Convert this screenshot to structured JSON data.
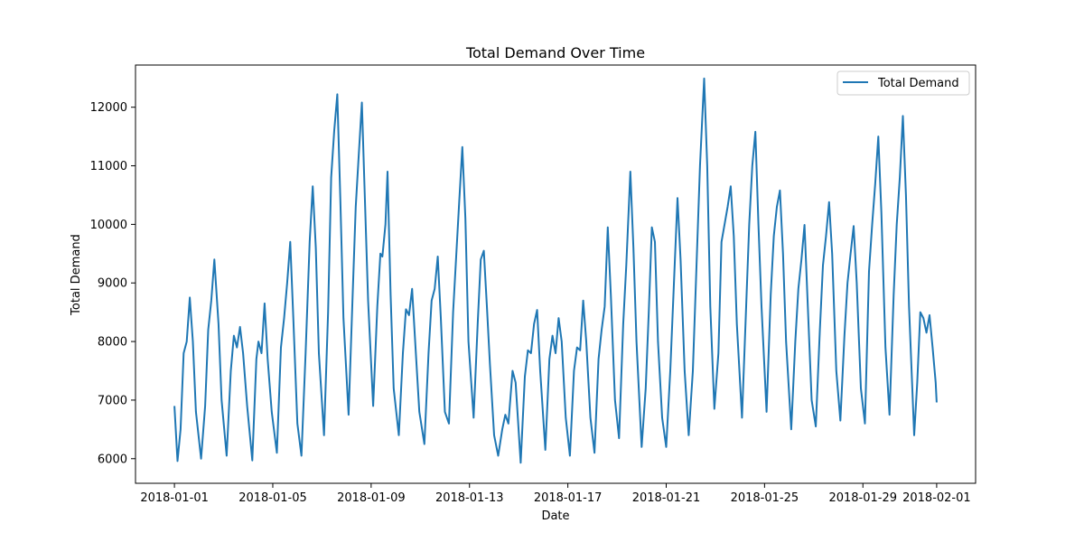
{
  "chart_data": {
    "type": "line",
    "title": "Total Demand Over Time",
    "xlabel": "Date",
    "ylabel": "Total Demand",
    "x_start": "2018-01-01",
    "x_end": "2018-02-01",
    "xlim": [
      "2017-12-30T10:00",
      "2018-02-02T14:00"
    ],
    "ylim": [
      5580,
      12720
    ],
    "x_ticks": [
      "2018-01-01",
      "2018-01-05",
      "2018-01-09",
      "2018-01-13",
      "2018-01-17",
      "2018-01-21",
      "2018-01-25",
      "2018-01-29",
      "2018-02-01"
    ],
    "y_ticks": [
      6000,
      7000,
      8000,
      9000,
      10000,
      11000,
      12000
    ],
    "grid": false,
    "legend": "top-right",
    "colors": {
      "series": "#1f77b4"
    },
    "series": [
      {
        "name": "Total Demand",
        "points": [
          [
            "2018-01-01T00:00",
            6900
          ],
          [
            "2018-01-01T03:00",
            5960
          ],
          [
            "2018-01-01T06:00",
            6500
          ],
          [
            "2018-01-01T09:00",
            7800
          ],
          [
            "2018-01-01T12:00",
            8000
          ],
          [
            "2018-01-01T15:00",
            8750
          ],
          [
            "2018-01-01T18:00",
            8000
          ],
          [
            "2018-01-01T21:00",
            6800
          ],
          [
            "2018-01-02T02:00",
            6000
          ],
          [
            "2018-01-02T06:00",
            6900
          ],
          [
            "2018-01-02T09:00",
            8200
          ],
          [
            "2018-01-02T12:00",
            8700
          ],
          [
            "2018-01-02T15:00",
            9400
          ],
          [
            "2018-01-02T19:00",
            8300
          ],
          [
            "2018-01-02T22:00",
            7000
          ],
          [
            "2018-01-03T03:00",
            6050
          ],
          [
            "2018-01-03T07:00",
            7500
          ],
          [
            "2018-01-03T10:00",
            8100
          ],
          [
            "2018-01-03T13:00",
            7900
          ],
          [
            "2018-01-03T16:00",
            8250
          ],
          [
            "2018-01-03T19:00",
            7800
          ],
          [
            "2018-01-03T23:00",
            6900
          ],
          [
            "2018-01-04T04:00",
            5970
          ],
          [
            "2018-01-04T08:00",
            7700
          ],
          [
            "2018-01-04T10:00",
            8000
          ],
          [
            "2018-01-04T13:00",
            7800
          ],
          [
            "2018-01-04T16:00",
            8650
          ],
          [
            "2018-01-04T19:00",
            7700
          ],
          [
            "2018-01-04T23:00",
            6800
          ],
          [
            "2018-01-05T04:00",
            6100
          ],
          [
            "2018-01-05T08:00",
            7900
          ],
          [
            "2018-01-05T11:00",
            8400
          ],
          [
            "2018-01-05T14:00",
            9000
          ],
          [
            "2018-01-05T17:00",
            9700
          ],
          [
            "2018-01-05T20:00",
            8400
          ],
          [
            "2018-01-06T00:00",
            6600
          ],
          [
            "2018-01-06T04:00",
            6050
          ],
          [
            "2018-01-06T08:00",
            7800
          ],
          [
            "2018-01-06T12:00",
            9700
          ],
          [
            "2018-01-06T15:00",
            10650
          ],
          [
            "2018-01-06T18:00",
            9600
          ],
          [
            "2018-01-06T21:00",
            7800
          ],
          [
            "2018-01-07T02:00",
            6400
          ],
          [
            "2018-01-07T06:00",
            8500
          ],
          [
            "2018-01-07T09:00",
            10800
          ],
          [
            "2018-01-07T12:00",
            11600
          ],
          [
            "2018-01-07T15:00",
            12220
          ],
          [
            "2018-01-07T18:00",
            10400
          ],
          [
            "2018-01-07T21:00",
            8400
          ],
          [
            "2018-01-08T02:00",
            6750
          ],
          [
            "2018-01-08T06:00",
            8800
          ],
          [
            "2018-01-08T09:00",
            10300
          ],
          [
            "2018-01-08T12:00",
            11200
          ],
          [
            "2018-01-08T15:00",
            12080
          ],
          [
            "2018-01-08T18:00",
            10400
          ],
          [
            "2018-01-08T21:00",
            8700
          ],
          [
            "2018-01-09T02:00",
            6900
          ],
          [
            "2018-01-09T06:00",
            8600
          ],
          [
            "2018-01-09T09:00",
            9500
          ],
          [
            "2018-01-09T11:00",
            9450
          ],
          [
            "2018-01-09T14:00",
            10000
          ],
          [
            "2018-01-09T16:00",
            10900
          ],
          [
            "2018-01-09T19:00",
            8800
          ],
          [
            "2018-01-09T22:00",
            7200
          ],
          [
            "2018-01-10T03:00",
            6400
          ],
          [
            "2018-01-10T07:00",
            7800
          ],
          [
            "2018-01-10T10:00",
            8550
          ],
          [
            "2018-01-10T13:00",
            8450
          ],
          [
            "2018-01-10T16:00",
            8900
          ],
          [
            "2018-01-10T19:00",
            8000
          ],
          [
            "2018-01-10T23:00",
            6800
          ],
          [
            "2018-01-11T04:00",
            6250
          ],
          [
            "2018-01-11T08:00",
            7800
          ],
          [
            "2018-01-11T11:00",
            8700
          ],
          [
            "2018-01-11T14:00",
            8900
          ],
          [
            "2018-01-11T17:00",
            9450
          ],
          [
            "2018-01-11T20:00",
            8400
          ],
          [
            "2018-01-12T00:00",
            6800
          ],
          [
            "2018-01-12T04:00",
            6600
          ],
          [
            "2018-01-12T08:00",
            8500
          ],
          [
            "2018-01-12T11:00",
            9450
          ],
          [
            "2018-01-12T14:00",
            10400
          ],
          [
            "2018-01-12T17:00",
            11320
          ],
          [
            "2018-01-12T20:00",
            10100
          ],
          [
            "2018-01-12T23:00",
            8000
          ],
          [
            "2018-01-13T04:00",
            6700
          ],
          [
            "2018-01-13T08:00",
            8300
          ],
          [
            "2018-01-13T11:00",
            9400
          ],
          [
            "2018-01-13T14:00",
            9550
          ],
          [
            "2018-01-13T17:00",
            8600
          ],
          [
            "2018-01-13T20:00",
            7600
          ],
          [
            "2018-01-14T00:00",
            6400
          ],
          [
            "2018-01-14T04:00",
            6050
          ],
          [
            "2018-01-14T08:00",
            6500
          ],
          [
            "2018-01-14T11:00",
            6750
          ],
          [
            "2018-01-14T14:00",
            6600
          ],
          [
            "2018-01-14T18:00",
            7500
          ],
          [
            "2018-01-14T21:00",
            7300
          ],
          [
            "2018-01-15T02:00",
            5930
          ],
          [
            "2018-01-15T06:00",
            7400
          ],
          [
            "2018-01-15T09:00",
            7850
          ],
          [
            "2018-01-15T12:00",
            7800
          ],
          [
            "2018-01-15T15:00",
            8300
          ],
          [
            "2018-01-15T18:00",
            8540
          ],
          [
            "2018-01-15T21:00",
            7500
          ],
          [
            "2018-01-16T02:00",
            6150
          ],
          [
            "2018-01-16T06:00",
            7700
          ],
          [
            "2018-01-16T09:00",
            8100
          ],
          [
            "2018-01-16T12:00",
            7800
          ],
          [
            "2018-01-16T15:00",
            8400
          ],
          [
            "2018-01-16T18:00",
            8000
          ],
          [
            "2018-01-16T22:00",
            6700
          ],
          [
            "2018-01-17T02:00",
            6050
          ],
          [
            "2018-01-17T06:00",
            7500
          ],
          [
            "2018-01-17T09:00",
            7900
          ],
          [
            "2018-01-17T12:00",
            7850
          ],
          [
            "2018-01-17T15:00",
            8700
          ],
          [
            "2018-01-17T18:00",
            8000
          ],
          [
            "2018-01-17T22:00",
            6700
          ],
          [
            "2018-01-18T02:00",
            6100
          ],
          [
            "2018-01-18T06:00",
            7700
          ],
          [
            "2018-01-18T09:00",
            8200
          ],
          [
            "2018-01-18T12:00",
            8600
          ],
          [
            "2018-01-18T15:00",
            9950
          ],
          [
            "2018-01-18T18:00",
            8800
          ],
          [
            "2018-01-18T22:00",
            7000
          ],
          [
            "2018-01-19T02:00",
            6350
          ],
          [
            "2018-01-19T06:00",
            8300
          ],
          [
            "2018-01-19T09:00",
            9300
          ],
          [
            "2018-01-19T13:00",
            10900
          ],
          [
            "2018-01-19T16:00",
            9600
          ],
          [
            "2018-01-19T19:00",
            8000
          ],
          [
            "2018-01-20T00:00",
            6200
          ],
          [
            "2018-01-20T04:00",
            7200
          ],
          [
            "2018-01-20T07:00",
            8500
          ],
          [
            "2018-01-20T10:00",
            9950
          ],
          [
            "2018-01-20T13:00",
            9700
          ],
          [
            "2018-01-20T16:00",
            8000
          ],
          [
            "2018-01-20T20:00",
            6700
          ],
          [
            "2018-01-21T00:00",
            6200
          ],
          [
            "2018-01-21T04:00",
            7500
          ],
          [
            "2018-01-21T08:00",
            9200
          ],
          [
            "2018-01-21T11:00",
            10450
          ],
          [
            "2018-01-21T14:00",
            9400
          ],
          [
            "2018-01-21T18:00",
            7500
          ],
          [
            "2018-01-21T22:00",
            6400
          ],
          [
            "2018-01-22T02:00",
            7500
          ],
          [
            "2018-01-22T06:00",
            9500
          ],
          [
            "2018-01-22T09:00",
            11000
          ],
          [
            "2018-01-22T13:00",
            12490
          ],
          [
            "2018-01-22T16:00",
            11000
          ],
          [
            "2018-01-22T19:00",
            8600
          ],
          [
            "2018-01-22T23:00",
            6850
          ],
          [
            "2018-01-23T03:00",
            7800
          ],
          [
            "2018-01-23T06:00",
            9700
          ],
          [
            "2018-01-23T09:00",
            10000
          ],
          [
            "2018-01-23T12:00",
            10300
          ],
          [
            "2018-01-23T15:00",
            10650
          ],
          [
            "2018-01-23T18:00",
            9800
          ],
          [
            "2018-01-23T21:00",
            8300
          ],
          [
            "2018-01-24T02:00",
            6700
          ],
          [
            "2018-01-24T06:00",
            8600
          ],
          [
            "2018-01-24T09:00",
            10000
          ],
          [
            "2018-01-24T12:00",
            11000
          ],
          [
            "2018-01-24T15:00",
            11580
          ],
          [
            "2018-01-24T18:00",
            10000
          ],
          [
            "2018-01-24T21:00",
            8600
          ],
          [
            "2018-01-25T02:00",
            6800
          ],
          [
            "2018-01-25T06:00",
            8800
          ],
          [
            "2018-01-25T09:00",
            9800
          ],
          [
            "2018-01-25T12:00",
            10300
          ],
          [
            "2018-01-25T15:00",
            10580
          ],
          [
            "2018-01-25T18:00",
            9500
          ],
          [
            "2018-01-25T21:00",
            8000
          ],
          [
            "2018-01-26T02:00",
            6500
          ],
          [
            "2018-01-26T06:00",
            8000
          ],
          [
            "2018-01-26T09:00",
            8900
          ],
          [
            "2018-01-26T12:00",
            9400
          ],
          [
            "2018-01-26T15:00",
            9990
          ],
          [
            "2018-01-26T18:00",
            8700
          ],
          [
            "2018-01-26T22:00",
            7000
          ],
          [
            "2018-01-27T02:00",
            6550
          ],
          [
            "2018-01-27T06:00",
            8200
          ],
          [
            "2018-01-27T09:00",
            9300
          ],
          [
            "2018-01-27T12:00",
            9800
          ],
          [
            "2018-01-27T15:00",
            10380
          ],
          [
            "2018-01-27T18:00",
            9500
          ],
          [
            "2018-01-27T22:00",
            7500
          ],
          [
            "2018-01-28T02:00",
            6650
          ],
          [
            "2018-01-28T06:00",
            8100
          ],
          [
            "2018-01-28T09:00",
            9000
          ],
          [
            "2018-01-28T12:00",
            9500
          ],
          [
            "2018-01-28T15:00",
            9970
          ],
          [
            "2018-01-28T18:00",
            9000
          ],
          [
            "2018-01-28T22:00",
            7200
          ],
          [
            "2018-01-29T02:00",
            6600
          ],
          [
            "2018-01-29T06:00",
            9200
          ],
          [
            "2018-01-29T09:00",
            10000
          ],
          [
            "2018-01-29T12:00",
            10700
          ],
          [
            "2018-01-29T15:00",
            11500
          ],
          [
            "2018-01-29T18:00",
            10200
          ],
          [
            "2018-01-29T22:00",
            7900
          ],
          [
            "2018-01-30T02:00",
            6750
          ],
          [
            "2018-01-30T06:00",
            8800
          ],
          [
            "2018-01-30T09:00",
            10000
          ],
          [
            "2018-01-30T12:00",
            10800
          ],
          [
            "2018-01-30T15:00",
            11850
          ],
          [
            "2018-01-30T18:00",
            10500
          ],
          [
            "2018-01-30T21:00",
            8600
          ],
          [
            "2018-01-31T02:00",
            6400
          ],
          [
            "2018-01-31T05:00",
            7300
          ],
          [
            "2018-01-31T08:00",
            8500
          ],
          [
            "2018-01-31T11:00",
            8400
          ],
          [
            "2018-01-31T14:00",
            8150
          ],
          [
            "2018-01-31T17:00",
            8450
          ],
          [
            "2018-01-31T20:00",
            7900
          ],
          [
            "2018-01-31T23:00",
            7300
          ],
          [
            "2018-02-01T00:00",
            6960
          ]
        ]
      }
    ]
  }
}
